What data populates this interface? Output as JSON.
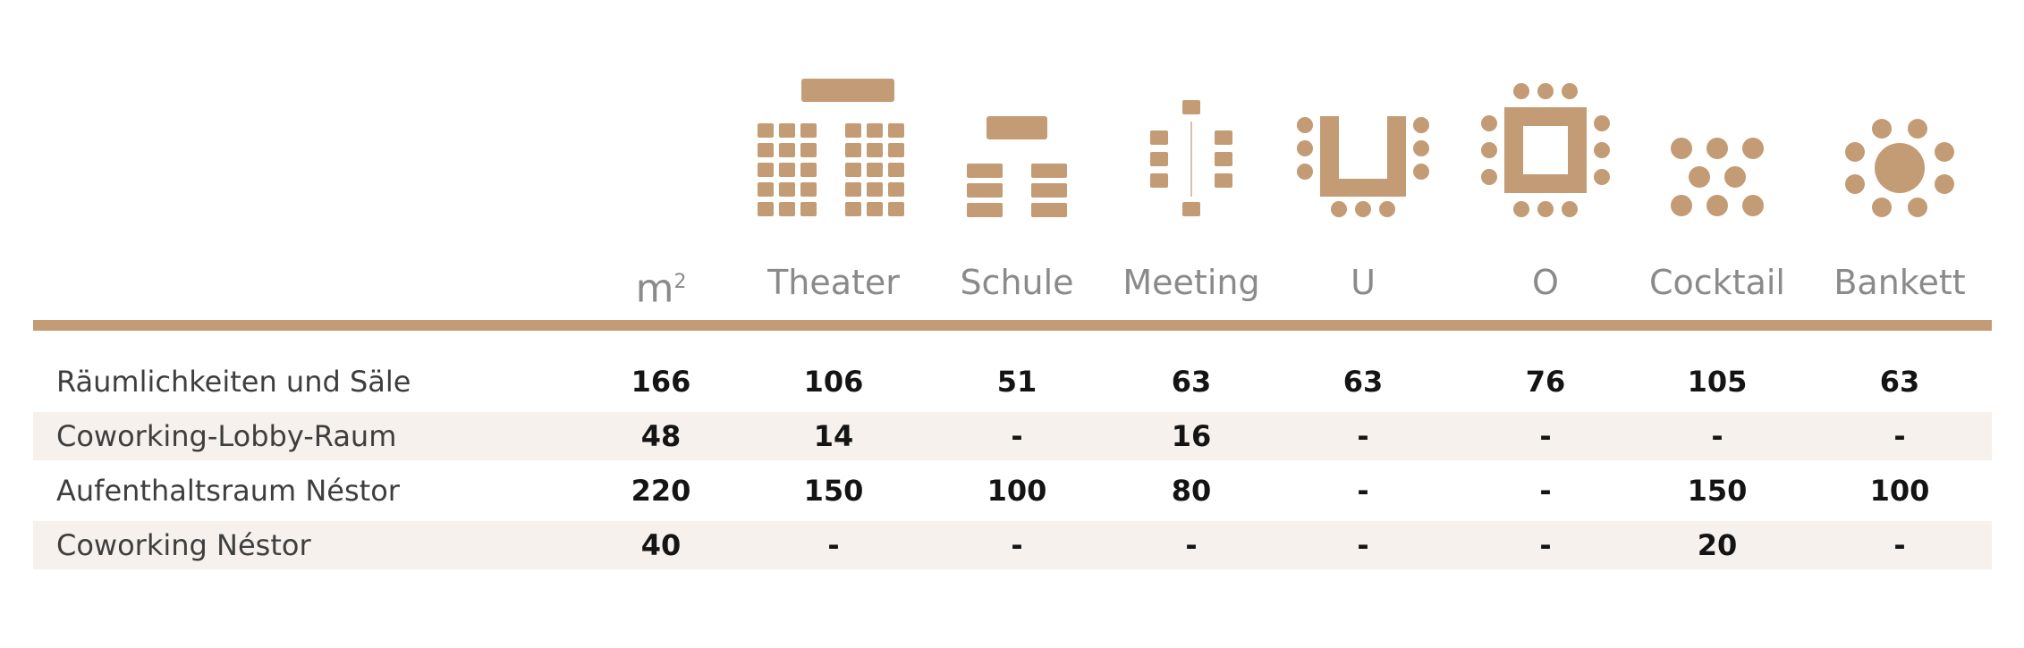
{
  "colors": {
    "accent": "#c39b74",
    "header_text": "#8a8a8a",
    "row_shade": "#f6f1ec"
  },
  "columns": [
    {
      "key": "m2",
      "label": "m",
      "sup": "2",
      "icon": "area-icon"
    },
    {
      "key": "theater",
      "label": "Theater",
      "icon": "theater-layout-icon"
    },
    {
      "key": "schule",
      "label": "Schule",
      "icon": "classroom-layout-icon"
    },
    {
      "key": "meeting",
      "label": "Meeting",
      "icon": "meeting-layout-icon"
    },
    {
      "key": "u",
      "label": "U",
      "icon": "u-shape-layout-icon"
    },
    {
      "key": "o",
      "label": "O",
      "icon": "o-shape-layout-icon"
    },
    {
      "key": "cocktail",
      "label": "Cocktail",
      "icon": "cocktail-layout-icon"
    },
    {
      "key": "bankett",
      "label": "Bankett",
      "icon": "banquet-layout-icon"
    }
  ],
  "rows": [
    {
      "name": "Räumlichkeiten und Säle",
      "values": [
        "166",
        "106",
        "51",
        "63",
        "63",
        "76",
        "105",
        "63"
      ]
    },
    {
      "name": "Coworking-Lobby-Raum",
      "values": [
        "48",
        "14",
        "-",
        "16",
        "-",
        "-",
        "-",
        "-"
      ]
    },
    {
      "name": "Aufenthaltsraum Néstor",
      "values": [
        "220",
        "150",
        "100",
        "80",
        "-",
        "-",
        "150",
        "100"
      ]
    },
    {
      "name": "Coworking Néstor",
      "values": [
        "40",
        "-",
        "-",
        "-",
        "-",
        "-",
        "20",
        "-"
      ]
    }
  ]
}
